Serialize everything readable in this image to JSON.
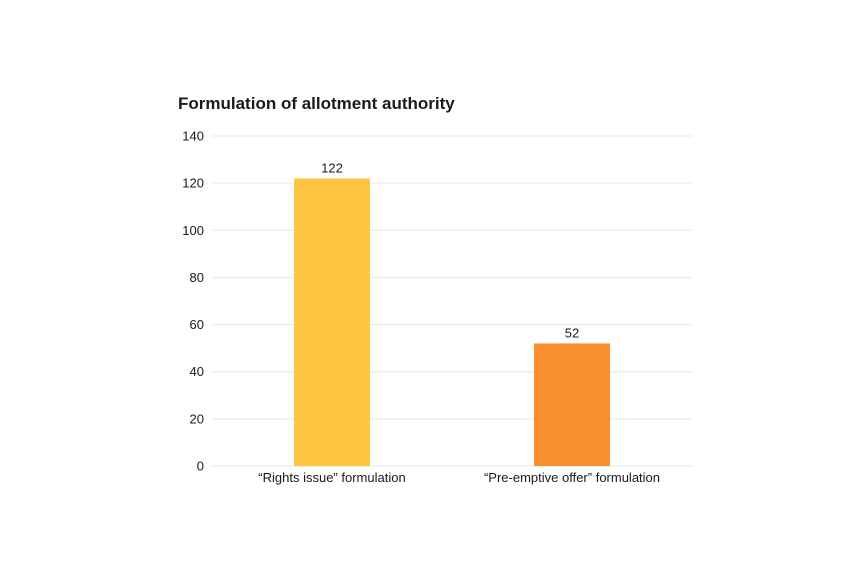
{
  "chart_data": {
    "type": "bar",
    "title": "Formulation of allotment authority",
    "xlabel": "",
    "ylabel": "",
    "categories": [
      "“Rights issue” formulation",
      "“Pre-emptive offer” formulation"
    ],
    "values": [
      122,
      52
    ],
    "data_labels": [
      "122",
      "52"
    ],
    "ylim": [
      0,
      140
    ],
    "yticks": [
      0,
      20,
      40,
      60,
      80,
      100,
      120,
      140
    ],
    "grid": true,
    "legend": "none",
    "colors": {
      "bars": [
        "#FEC542",
        "#F98E2E"
      ],
      "grid": "#e6e6e6"
    }
  }
}
